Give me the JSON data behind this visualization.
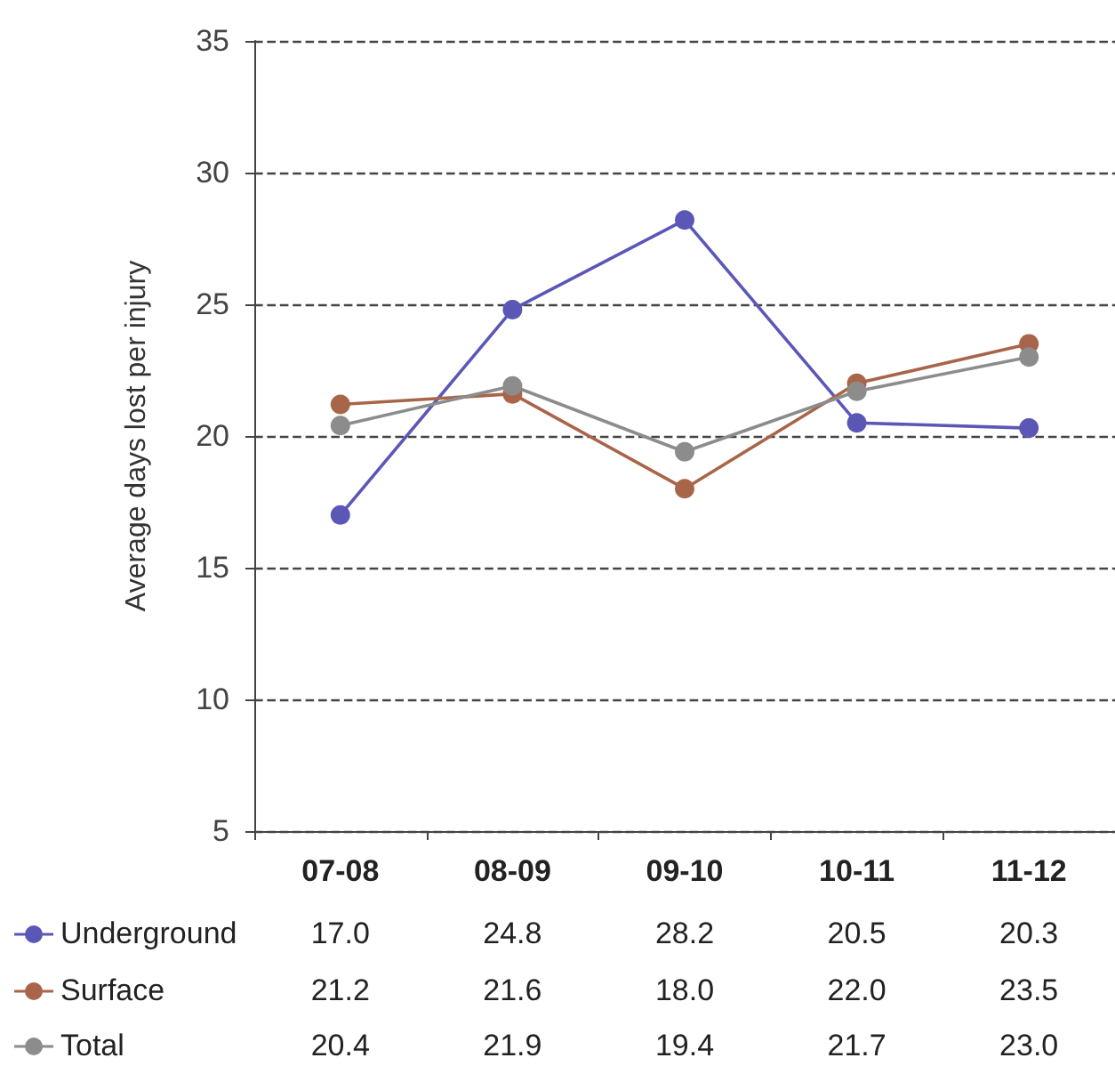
{
  "chart_data": {
    "type": "line",
    "ylabel": "Average days lost per injury",
    "categories": [
      "07-08",
      "08-09",
      "09-10",
      "10-11",
      "11-12"
    ],
    "series": [
      {
        "name": "Underground",
        "color": "#5b57b7",
        "values": [
          17.0,
          24.8,
          28.2,
          20.5,
          20.3
        ],
        "value_labels": [
          "17.0",
          "24.8",
          "28.2",
          "20.5",
          "20.3"
        ]
      },
      {
        "name": "Surface",
        "color": "#a8654a",
        "values": [
          21.2,
          21.6,
          18.0,
          22.0,
          23.5
        ],
        "value_labels": [
          "21.2",
          "21.6",
          "18.0",
          "22.0",
          "23.5"
        ]
      },
      {
        "name": "Total",
        "color": "#8c8c8c",
        "values": [
          20.4,
          21.9,
          19.4,
          21.7,
          23.0
        ],
        "value_labels": [
          "20.4",
          "21.9",
          "19.4",
          "21.7",
          "23.0"
        ]
      }
    ],
    "ylim": [
      5,
      35
    ],
    "yticks": [
      5,
      10,
      15,
      20,
      25,
      30,
      35
    ],
    "grid": "y",
    "legend": "bottom",
    "marker": "circle",
    "line_style": "solid"
  }
}
